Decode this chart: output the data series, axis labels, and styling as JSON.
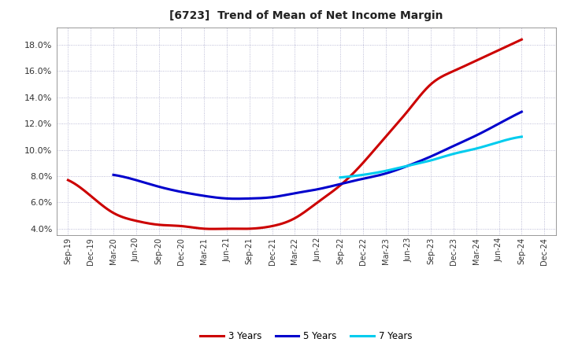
{
  "title": "[6723]  Trend of Mean of Net Income Margin",
  "background_color": "#ffffff",
  "plot_bg_color": "#ffffff",
  "grid_color": "#aaaacc",
  "x_labels": [
    "Sep-19",
    "Dec-19",
    "Mar-20",
    "Jun-20",
    "Sep-20",
    "Dec-20",
    "Mar-21",
    "Jun-21",
    "Sep-21",
    "Dec-21",
    "Mar-22",
    "Jun-22",
    "Sep-22",
    "Dec-22",
    "Mar-23",
    "Jun-23",
    "Sep-23",
    "Dec-23",
    "Mar-24",
    "Jun-24",
    "Sep-24",
    "Dec-24"
  ],
  "ylim": [
    0.035,
    0.193
  ],
  "yticks": [
    0.04,
    0.06,
    0.08,
    0.1,
    0.12,
    0.14,
    0.16,
    0.18
  ],
  "series": {
    "3 Years": {
      "color": "#cc0000",
      "values": [
        0.077,
        0.065,
        0.052,
        0.046,
        0.043,
        0.042,
        0.04,
        0.04,
        0.04,
        0.042,
        0.048,
        0.06,
        0.073,
        0.09,
        0.11,
        0.13,
        0.15,
        0.16,
        0.168,
        0.176,
        0.184,
        null
      ]
    },
    "5 Years": {
      "color": "#0000cc",
      "values": [
        null,
        null,
        0.081,
        0.077,
        0.072,
        0.068,
        0.065,
        0.063,
        0.063,
        0.064,
        0.067,
        0.07,
        0.074,
        0.078,
        0.082,
        0.088,
        0.095,
        0.103,
        0.111,
        0.12,
        0.129,
        null
      ]
    },
    "7 Years": {
      "color": "#00ccee",
      "values": [
        null,
        null,
        null,
        null,
        null,
        null,
        null,
        null,
        null,
        null,
        null,
        null,
        0.079,
        0.081,
        0.084,
        0.088,
        0.092,
        0.097,
        0.101,
        0.106,
        0.11,
        null
      ]
    },
    "10 Years": {
      "color": "#008800",
      "values": [
        null,
        null,
        null,
        null,
        null,
        null,
        null,
        null,
        null,
        null,
        null,
        null,
        null,
        null,
        null,
        null,
        null,
        null,
        null,
        null,
        null,
        null
      ]
    }
  }
}
